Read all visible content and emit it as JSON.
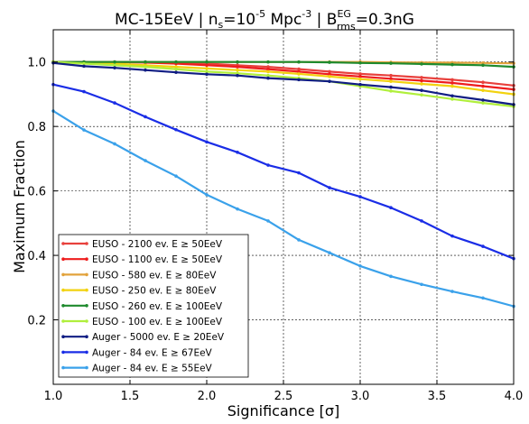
{
  "chart_data": {
    "type": "line",
    "title": {
      "prefix": "MC-15EeV | n",
      "n_sub": "s",
      "n_mid": "=10",
      "n_sup": "-5",
      "units": " Mpc",
      "units_sup": "-3",
      "sep": "  | B",
      "b_sup": "EG",
      "b_sub": "rms",
      "suffix": "=0.3nG"
    },
    "xlabel": "Significance [σ]",
    "ylabel": "Maximum Fraction",
    "xlim": [
      1.0,
      4.0
    ],
    "ylim": [
      0.0,
      1.1
    ],
    "xticks": [
      1.0,
      1.5,
      2.0,
      2.5,
      3.0,
      3.5,
      4.0
    ],
    "xtick_labels": [
      "1.0",
      "1.5",
      "2.0",
      "2.5",
      "3.0",
      "3.5",
      "4.0"
    ],
    "yticks": [
      0.2,
      0.4,
      0.6,
      0.8,
      1.0
    ],
    "ytick_labels": [
      "0.2",
      "0.4",
      "0.6",
      "0.8",
      "1.0"
    ],
    "grid": true,
    "legend_position": "lower-left",
    "x": [
      1.0,
      1.2,
      1.4,
      1.6,
      1.8,
      2.0,
      2.2,
      2.4,
      2.6,
      2.8,
      3.0,
      3.2,
      3.4,
      3.6,
      3.8,
      4.0
    ],
    "series": [
      {
        "name": "EUSO - 2100 ev. E  ≥ 50EeV",
        "color": "#e8403c",
        "values": [
          1.0,
          1.0,
          1.0,
          1.0,
          0.998,
          0.995,
          0.99,
          0.985,
          0.978,
          0.97,
          0.963,
          0.958,
          0.952,
          0.945,
          0.937,
          0.927
        ]
      },
      {
        "name": "EUSO - 1100 ev. E  ≥ 50EeV",
        "color": "#ee1d1d",
        "values": [
          1.0,
          1.0,
          1.0,
          0.998,
          0.995,
          0.99,
          0.985,
          0.978,
          0.97,
          0.962,
          0.955,
          0.948,
          0.942,
          0.935,
          0.925,
          0.915
        ]
      },
      {
        "name": "EUSO - 580 ev. E  ≥ 80EeV",
        "color": "#e2a23b",
        "values": [
          1.0,
          1.0,
          1.0,
          1.0,
          1.0,
          1.0,
          1.0,
          1.0,
          1.0,
          1.0,
          1.0,
          0.999,
          0.998,
          0.998,
          0.997,
          0.996
        ]
      },
      {
        "name": "EUSO - 250 ev. E  ≥ 80EeV",
        "color": "#f2d20f",
        "values": [
          1.0,
          0.998,
          0.995,
          0.99,
          0.985,
          0.98,
          0.975,
          0.97,
          0.963,
          0.955,
          0.947,
          0.94,
          0.932,
          0.925,
          0.912,
          0.9
        ]
      },
      {
        "name": "EUSO - 260 ev. E  ≥ 100EeV",
        "color": "#1e8a2d",
        "values": [
          1.0,
          1.0,
          1.0,
          1.0,
          1.0,
          1.0,
          1.0,
          1.0,
          1.0,
          0.999,
          0.997,
          0.996,
          0.994,
          0.992,
          0.99,
          0.985
        ]
      },
      {
        "name": "EUSO - 100 ev. E  ≥ 100EeV",
        "color": "#b0ef3c",
        "values": [
          1.0,
          0.995,
          0.99,
          0.985,
          0.978,
          0.97,
          0.965,
          0.958,
          0.95,
          0.94,
          0.925,
          0.91,
          0.898,
          0.885,
          0.873,
          0.862
        ]
      },
      {
        "name": "Auger - 5000 ev. E  ≥ 20EeV",
        "color": "#101d83",
        "values": [
          0.997,
          0.987,
          0.982,
          0.975,
          0.968,
          0.962,
          0.958,
          0.95,
          0.945,
          0.94,
          0.93,
          0.922,
          0.912,
          0.895,
          0.882,
          0.868
        ]
      },
      {
        "name": "Auger - 84 ev. E  ≥ 67EeV",
        "color": "#1a2de6",
        "values": [
          0.93,
          0.908,
          0.873,
          0.83,
          0.79,
          0.752,
          0.72,
          0.68,
          0.656,
          0.61,
          0.582,
          0.548,
          0.507,
          0.46,
          0.428,
          0.39
        ]
      },
      {
        "name": "Auger - 84 ev. E  ≥ 55EeV",
        "color": "#3aa1ea",
        "values": [
          0.848,
          0.789,
          0.746,
          0.694,
          0.646,
          0.588,
          0.544,
          0.507,
          0.448,
          0.408,
          0.367,
          0.335,
          0.31,
          0.288,
          0.268,
          0.242
        ]
      }
    ]
  }
}
